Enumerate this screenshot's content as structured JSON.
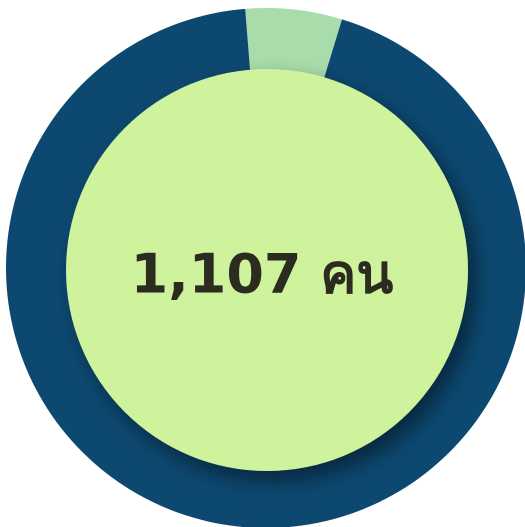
{
  "chart_data": {
    "type": "donut",
    "values": [
      6,
      94
    ],
    "colors": [
      "#a8dcaa",
      "#0d4870"
    ],
    "center_label": "1,107 คน",
    "center_color": "#cff29c"
  }
}
